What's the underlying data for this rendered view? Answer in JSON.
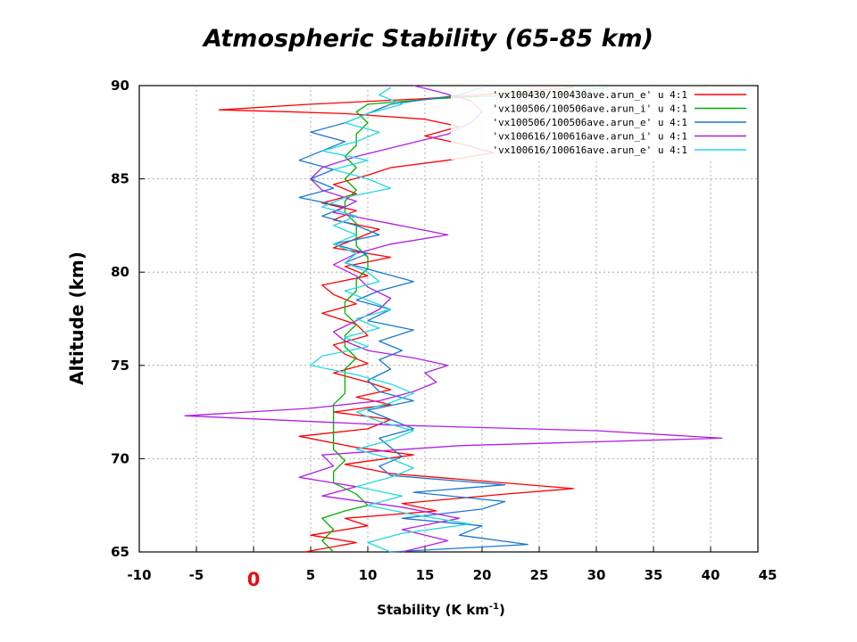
{
  "chart_data": {
    "type": "line",
    "title": "Atmospheric Stability (65-85 km)",
    "xlabel": "Stability (K km",
    "xlabel_sup": "-1",
    "xlabel_end": ")",
    "ylabel": "Altitude (km)",
    "xlim": [
      -10,
      45
    ],
    "ylim": [
      65,
      90
    ],
    "zero_label": "0",
    "x_ticks": [
      {
        "v": -10,
        "label": "-10"
      },
      {
        "v": -5,
        "label": "-5"
      },
      {
        "v": 5,
        "label": "5"
      },
      {
        "v": 10,
        "label": "10"
      },
      {
        "v": 15,
        "label": "15"
      },
      {
        "v": 20,
        "label": "20"
      },
      {
        "v": 25,
        "label": "25"
      },
      {
        "v": 30,
        "label": "30"
      },
      {
        "v": 35,
        "label": "35"
      },
      {
        "v": 40,
        "label": "40"
      },
      {
        "v": 45,
        "label": "45"
      }
    ],
    "y_ticks": [
      {
        "v": 65,
        "label": "65"
      },
      {
        "v": 70,
        "label": "70"
      },
      {
        "v": 75,
        "label": "75"
      },
      {
        "v": 80,
        "label": "80"
      },
      {
        "v": 85,
        "label": "85"
      },
      {
        "v": 90,
        "label": "90"
      }
    ],
    "grid": true,
    "legend_position": "top-right",
    "series": [
      {
        "name": "'vx100430/100430ave.arun_e' u 4:1",
        "color": "#ff0000",
        "points": [
          [
            4.5,
            65
          ],
          [
            9,
            65.5
          ],
          [
            5,
            65.9
          ],
          [
            10,
            66.4
          ],
          [
            8,
            66.8
          ],
          [
            16,
            67.2
          ],
          [
            13,
            67.6
          ],
          [
            22,
            68.1
          ],
          [
            28,
            68.4
          ],
          [
            20,
            68.8
          ],
          [
            12,
            69.2
          ],
          [
            8,
            69.7
          ],
          [
            14,
            70.2
          ],
          [
            9,
            70.6
          ],
          [
            4,
            71.2
          ],
          [
            10,
            71.6
          ],
          [
            12,
            72.1
          ],
          [
            7,
            72.5
          ],
          [
            12,
            72.9
          ],
          [
            9,
            73.3
          ],
          [
            12,
            73.7
          ],
          [
            10,
            74.1
          ],
          [
            7,
            74.6
          ],
          [
            10,
            75.1
          ],
          [
            8,
            75.6
          ],
          [
            7,
            76.1
          ],
          [
            10,
            76.6
          ],
          [
            9,
            77.2
          ],
          [
            6,
            77.8
          ],
          [
            9,
            78.3
          ],
          [
            7,
            78.8
          ],
          [
            6,
            79.3
          ],
          [
            10,
            79.8
          ],
          [
            8,
            80.3
          ],
          [
            12,
            80.8
          ],
          [
            7,
            81.3
          ],
          [
            9,
            81.8
          ],
          [
            11,
            82.3
          ],
          [
            7,
            82.8
          ],
          [
            9,
            83.3
          ],
          [
            6,
            83.7
          ],
          [
            9,
            84.2
          ],
          [
            7,
            84.7
          ],
          [
            10,
            85.2
          ],
          [
            12,
            85.6
          ],
          [
            17,
            86
          ],
          [
            21,
            86.4
          ],
          [
            18,
            86.9
          ],
          [
            15,
            87.3
          ],
          [
            18,
            87.8
          ],
          [
            15,
            88.2
          ],
          [
            8,
            88.5
          ],
          [
            3,
            88.6
          ],
          [
            -3,
            88.7
          ],
          [
            5,
            89
          ],
          [
            15,
            89.3
          ],
          [
            22,
            89.6
          ],
          [
            28,
            89.9
          ]
        ]
      },
      {
        "name": "'vx100506/100506ave.arun_i' u 4:1",
        "color": "#00b000",
        "points": [
          [
            7,
            65
          ],
          [
            6,
            65.6
          ],
          [
            7,
            66.2
          ],
          [
            6,
            66.8
          ],
          [
            8,
            67.2
          ],
          [
            10,
            67.5
          ],
          [
            9,
            68.1
          ],
          [
            7,
            68.7
          ],
          [
            7,
            69.3
          ],
          [
            8,
            69.9
          ],
          [
            7,
            70.5
          ],
          [
            7,
            71.1
          ],
          [
            7,
            71.7
          ],
          [
            7,
            72.3
          ],
          [
            7,
            72.9
          ],
          [
            8,
            73.5
          ],
          [
            8,
            74.1
          ],
          [
            8,
            74.8
          ],
          [
            9,
            75.4
          ],
          [
            8,
            76
          ],
          [
            8,
            76.6
          ],
          [
            9,
            77.2
          ],
          [
            8,
            77.8
          ],
          [
            8,
            78.4
          ],
          [
            9,
            79
          ],
          [
            9,
            79.6
          ],
          [
            10,
            80.2
          ],
          [
            10,
            80.8
          ],
          [
            9,
            81.4
          ],
          [
            9,
            82
          ],
          [
            9,
            82.6
          ],
          [
            8,
            83.2
          ],
          [
            8,
            83.8
          ],
          [
            9,
            84.4
          ],
          [
            8,
            85
          ],
          [
            9,
            85.6
          ],
          [
            8,
            86.2
          ],
          [
            9,
            86.8
          ],
          [
            9,
            87.4
          ],
          [
            10,
            88
          ],
          [
            9,
            88.6
          ],
          [
            10,
            89
          ],
          [
            16,
            89.3
          ],
          [
            26,
            89.6
          ],
          [
            31,
            89.9
          ]
        ]
      },
      {
        "name": "'vx100506/100506ave.arun_e' u 4:1",
        "color": "#1a78d0",
        "points": [
          [
            12,
            65
          ],
          [
            24,
            65.4
          ],
          [
            18,
            65.9
          ],
          [
            20,
            66.4
          ],
          [
            13,
            66.8
          ],
          [
            20,
            67.3
          ],
          [
            22,
            67.7
          ],
          [
            14,
            68.2
          ],
          [
            22,
            68.6
          ],
          [
            12,
            69.1
          ],
          [
            11,
            69.6
          ],
          [
            13,
            70.1
          ],
          [
            12,
            70.6
          ],
          [
            11,
            71.1
          ],
          [
            14,
            71.6
          ],
          [
            12,
            72.1
          ],
          [
            10,
            72.6
          ],
          [
            14,
            73.1
          ],
          [
            11,
            73.6
          ],
          [
            10,
            74.2
          ],
          [
            12,
            74.8
          ],
          [
            11,
            75.3
          ],
          [
            13,
            75.8
          ],
          [
            11,
            76.3
          ],
          [
            14,
            76.9
          ],
          [
            10,
            77.4
          ],
          [
            12,
            78
          ],
          [
            9,
            78.5
          ],
          [
            11,
            79
          ],
          [
            14,
            79.5
          ],
          [
            11,
            80
          ],
          [
            8,
            80.5
          ],
          [
            10,
            81
          ],
          [
            7,
            81.5
          ],
          [
            11,
            82
          ],
          [
            9,
            82.5
          ],
          [
            6,
            83
          ],
          [
            8,
            83.5
          ],
          [
            4,
            84
          ],
          [
            7,
            84.5
          ],
          [
            5,
            85
          ],
          [
            7,
            85.5
          ],
          [
            4,
            86
          ],
          [
            6,
            86.5
          ],
          [
            8,
            87
          ],
          [
            5,
            87.5
          ],
          [
            8,
            88
          ],
          [
            10,
            88.5
          ],
          [
            12,
            89
          ],
          [
            18,
            89.5
          ],
          [
            20,
            89.9
          ]
        ]
      },
      {
        "name": "'vx100616/100616ave.arun_i' u 4:1",
        "color": "#b020e0",
        "points": [
          [
            13,
            65
          ],
          [
            17,
            65.6
          ],
          [
            13,
            66.2
          ],
          [
            18,
            66.8
          ],
          [
            13,
            67.4
          ],
          [
            6,
            68
          ],
          [
            9,
            68.5
          ],
          [
            4,
            69
          ],
          [
            7,
            69.6
          ],
          [
            6,
            70.2
          ],
          [
            18,
            70.7
          ],
          [
            41,
            71.1
          ],
          [
            30,
            71.5
          ],
          [
            12,
            71.8
          ],
          [
            -6,
            72.3
          ],
          [
            5,
            72.7
          ],
          [
            11,
            73.1
          ],
          [
            14,
            73.6
          ],
          [
            16,
            74.1
          ],
          [
            15,
            74.6
          ],
          [
            17,
            75
          ],
          [
            14,
            75.4
          ],
          [
            10,
            75.8
          ],
          [
            8,
            76.3
          ],
          [
            7,
            76.8
          ],
          [
            9,
            77.4
          ],
          [
            11,
            78
          ],
          [
            12,
            78.6
          ],
          [
            10,
            79.2
          ],
          [
            9,
            79.8
          ],
          [
            7,
            80.4
          ],
          [
            9,
            81
          ],
          [
            12,
            81.5
          ],
          [
            17,
            82
          ],
          [
            12,
            82.6
          ],
          [
            7,
            83.2
          ],
          [
            9,
            83.8
          ],
          [
            6,
            84.4
          ],
          [
            5,
            85
          ],
          [
            6,
            85.6
          ],
          [
            9,
            86.2
          ],
          [
            13,
            86.8
          ],
          [
            17,
            87.4
          ],
          [
            19,
            88
          ],
          [
            20,
            88.6
          ],
          [
            19,
            89.2
          ],
          [
            16,
            89.7
          ],
          [
            14,
            90
          ]
        ]
      },
      {
        "name": "'vx100616/100616ave.arun_e' u 4:1",
        "color": "#22d8e0",
        "points": [
          [
            12,
            65
          ],
          [
            10,
            65.5
          ],
          [
            13,
            66
          ],
          [
            19,
            66.5
          ],
          [
            14,
            67
          ],
          [
            10,
            67.5
          ],
          [
            13,
            68
          ],
          [
            9,
            68.5
          ],
          [
            12,
            69
          ],
          [
            14,
            69.5
          ],
          [
            12,
            70
          ],
          [
            9,
            70.5
          ],
          [
            12,
            71
          ],
          [
            14,
            71.5
          ],
          [
            11,
            72
          ],
          [
            9,
            72.5
          ],
          [
            12,
            73
          ],
          [
            14,
            73.5
          ],
          [
            12,
            74
          ],
          [
            9,
            74.5
          ],
          [
            5,
            75
          ],
          [
            6,
            75.5
          ],
          [
            10,
            76
          ],
          [
            8,
            76.5
          ],
          [
            11,
            77
          ],
          [
            9,
            77.5
          ],
          [
            12,
            78
          ],
          [
            10,
            78.5
          ],
          [
            8,
            79
          ],
          [
            11,
            79.5
          ],
          [
            10,
            80
          ],
          [
            8,
            80.5
          ],
          [
            9,
            81
          ],
          [
            7,
            81.5
          ],
          [
            9,
            82
          ],
          [
            7,
            82.5
          ],
          [
            9,
            83
          ],
          [
            6,
            83.5
          ],
          [
            8,
            84
          ],
          [
            12,
            84.5
          ],
          [
            10,
            85
          ],
          [
            7,
            85.5
          ],
          [
            10,
            86
          ],
          [
            6,
            86.5
          ],
          [
            9,
            87
          ],
          [
            11,
            87.5
          ],
          [
            8,
            88
          ],
          [
            10,
            88.5
          ],
          [
            13,
            89
          ],
          [
            11,
            89.5
          ],
          [
            12,
            89.9
          ]
        ]
      }
    ]
  }
}
